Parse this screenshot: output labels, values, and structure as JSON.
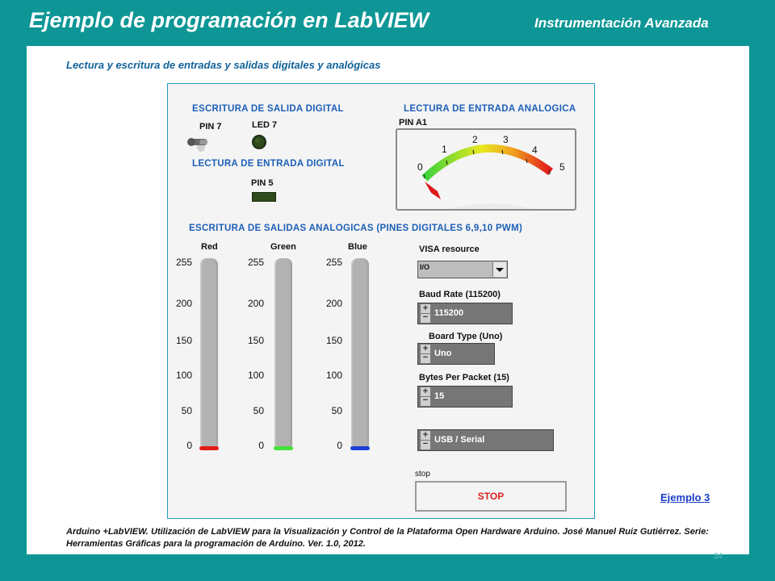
{
  "slide": {
    "title": "Ejemplo de programación en LabVIEW",
    "course": "Instrumentación Avanzada",
    "subtitle": "Lectura y escritura de entradas y salidas digitales y analógicas",
    "page_number": "34"
  },
  "panel": {
    "digital_out_heading": "ESCRITURA DE SALIDA DIGITAL",
    "pin7_label": "PIN 7",
    "led7_label": "LED 7",
    "digital_in_heading": "LECTURA DE ENTRADA DIGITAL",
    "pin5_label": "PIN 5",
    "analog_in_heading": "LECTURA DE ENTRADA ANALOGICA",
    "pin_a1_label": "PIN A1",
    "gauge": {
      "scale": [
        "0",
        "1",
        "2",
        "3",
        "4",
        "5"
      ],
      "min": 0,
      "max": 5,
      "value": 0
    },
    "analog_out_heading": "ESCRITURA DE SALIDAS ANALOGICAS (PINES DIGITALES 6,9,10 PWM)",
    "sliders": [
      {
        "label": "Red",
        "scale": [
          "255",
          "200",
          "150",
          "100",
          "50",
          "0"
        ],
        "value": 0,
        "color": "#e31b1b"
      },
      {
        "label": "Green",
        "scale": [
          "255",
          "200",
          "150",
          "100",
          "50",
          "0"
        ],
        "value": 0,
        "color": "#44e23a"
      },
      {
        "label": "Blue",
        "scale": [
          "255",
          "200",
          "150",
          "100",
          "50",
          "0"
        ],
        "value": 0,
        "color": "#1b3fd8"
      }
    ],
    "visa_label": "VISA resource",
    "visa_prefix": "I/O",
    "baud_label": "Baud Rate (115200)",
    "baud_value": "115200",
    "board_label": "Board Type (Uno)",
    "board_value": "Uno",
    "bytes_label": "Bytes Per Packet (15)",
    "bytes_value": "15",
    "connection_value": "USB / Serial",
    "stop_label": "stop",
    "stop_button": "STOP"
  },
  "footer": {
    "example_link": "Ejemplo 3",
    "citation": "Arduino +LabVIEW. Utilización de LabVIEW para la Visualización y Control de la Plataforma  Open Hardware Arduino. José Manuel Ruiz Gutiérrez. Serie: Herramientas Gráficas para la programación de Arduino. Ver. 1.0, 2012."
  },
  "colors": {
    "background": "#0e9696",
    "heading_blue": "#1d5fb8",
    "led_off": "#2f4a1c",
    "stop_text": "#dd2222"
  },
  "icons": {
    "toggle": "toggle-switch-icon",
    "led": "led-indicator-icon",
    "dropdown": "dropdown-arrow-icon"
  }
}
